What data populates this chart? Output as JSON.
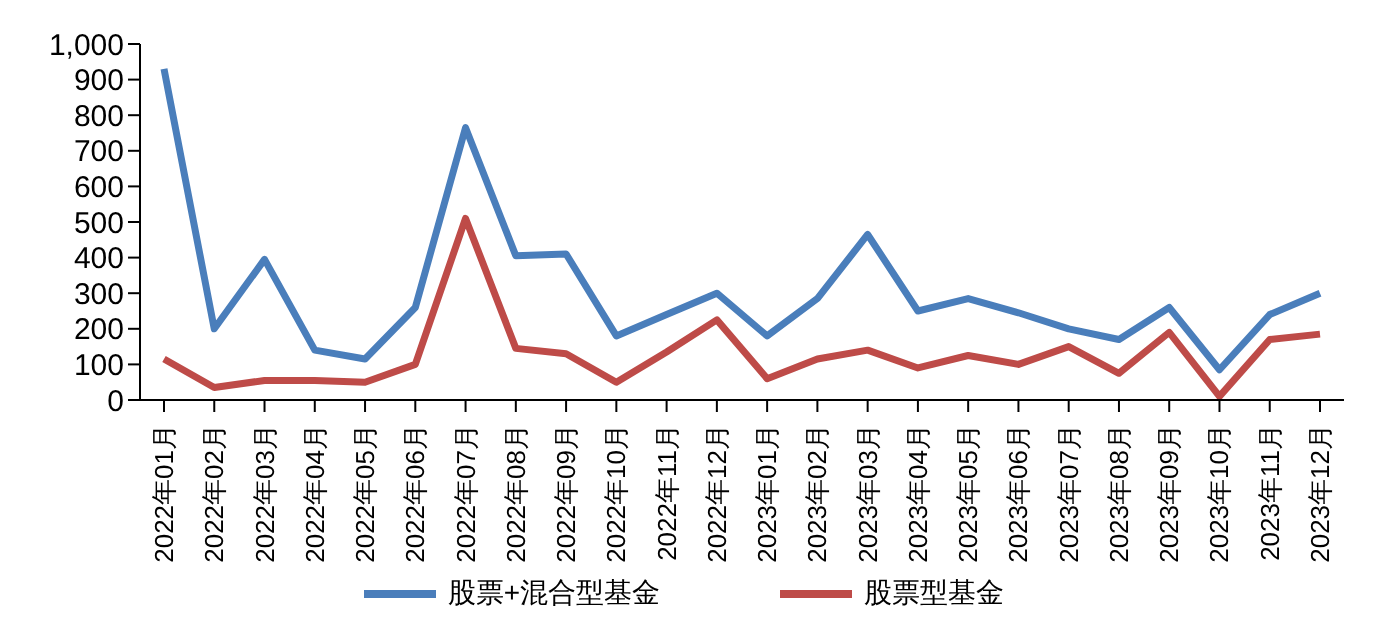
{
  "chart_data": {
    "type": "line",
    "categories": [
      "2022年01月",
      "2022年02月",
      "2022年03月",
      "2022年04月",
      "2022年05月",
      "2022年06月",
      "2022年07月",
      "2022年08月",
      "2022年09月",
      "2022年10月",
      "2022年11月",
      "2022年12月",
      "2023年01月",
      "2023年02月",
      "2023年03月",
      "2023年04月",
      "2023年05月",
      "2023年06月",
      "2023年07月",
      "2023年08月",
      "2023年09月",
      "2023年10月",
      "2023年11月",
      "2023年12月"
    ],
    "series": [
      {
        "name": "股票+混合型基金",
        "color": "#4a7ebb",
        "values": [
          930,
          200,
          395,
          140,
          115,
          260,
          765,
          405,
          410,
          180,
          240,
          300,
          180,
          285,
          465,
          250,
          285,
          245,
          200,
          170,
          260,
          85,
          240,
          300
        ]
      },
      {
        "name": "股票型基金",
        "color": "#be4b48",
        "values": [
          115,
          35,
          55,
          55,
          50,
          100,
          510,
          145,
          130,
          50,
          135,
          225,
          60,
          115,
          140,
          90,
          125,
          100,
          150,
          75,
          190,
          10,
          170,
          185
        ]
      }
    ],
    "ylim": [
      0,
      1000
    ],
    "yticks": [
      0,
      100,
      200,
      300,
      400,
      500,
      600,
      700,
      800,
      900,
      {
        "value": 1000,
        "label": "1,000"
      }
    ],
    "grid": false,
    "legend": "bottom",
    "marker": "none",
    "line_style": "solid"
  }
}
